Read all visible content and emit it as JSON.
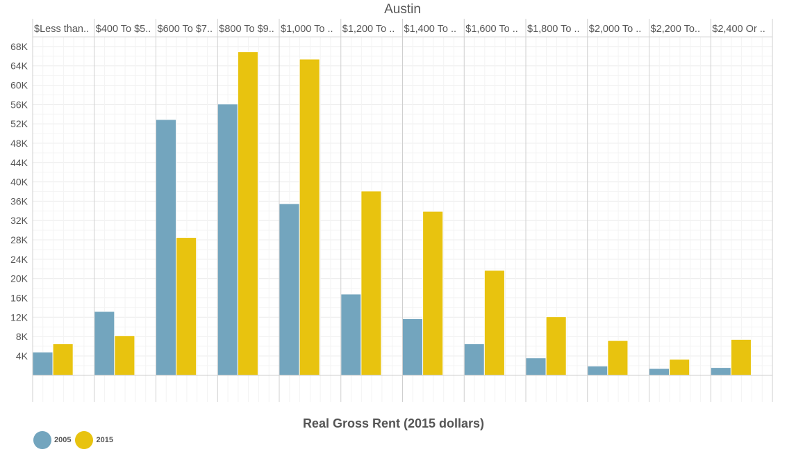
{
  "chart_data": {
    "type": "bar",
    "title": "Austin",
    "xlabel": "Real Gross Rent (2015 dollars)",
    "ylabel": "",
    "categories": [
      "$Less than..",
      "$400 To $5..",
      "$600 To $7..",
      "$800 To $9..",
      "$1,000 To ..",
      "$1,200 To ..",
      "$1,400 To ..",
      "$1,600 To ..",
      "$1,800 To ..",
      "$2,000 To ..",
      "$2,200 To..",
      "$2,400 Or .."
    ],
    "series": [
      {
        "name": "2005",
        "color": "#73A5BE",
        "values": [
          4800,
          13200,
          52900,
          56100,
          35500,
          16800,
          11700,
          6500,
          3600,
          1900,
          1400,
          1600
        ]
      },
      {
        "name": "2015",
        "color": "#E8C30F",
        "values": [
          6500,
          8200,
          28500,
          66900,
          65400,
          38100,
          33900,
          21700,
          12100,
          7200,
          3300,
          7400
        ]
      }
    ],
    "ylim": [
      -5500,
      70000
    ],
    "yticks": [
      4000,
      8000,
      12000,
      16000,
      20000,
      24000,
      28000,
      32000,
      36000,
      40000,
      44000,
      48000,
      52000,
      56000,
      60000,
      64000,
      68000
    ],
    "ytick_labels": [
      "4K",
      "8K",
      "12K",
      "16K",
      "20K",
      "24K",
      "28K",
      "32K",
      "36K",
      "40K",
      "44K",
      "48K",
      "52K",
      "56K",
      "60K",
      "64K",
      "68K"
    ],
    "grid": true,
    "legend": "bottom-left"
  }
}
